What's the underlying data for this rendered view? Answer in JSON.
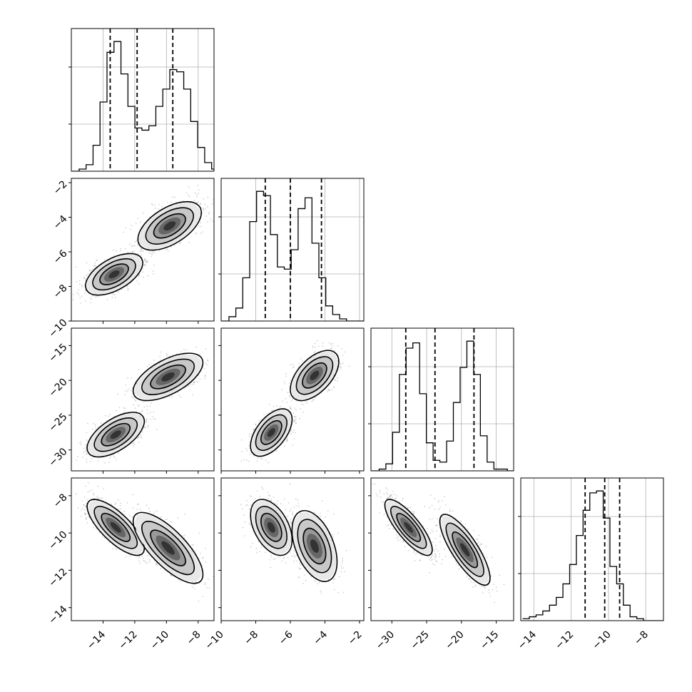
{
  "chart_data": {
    "type": "corner",
    "title": "",
    "grid": true,
    "params": [
      {
        "range": [
          -16,
          -7
        ],
        "ticks": [
          -14,
          -12,
          -10,
          -8
        ],
        "quantiles": [
          -13.55,
          -11.85,
          -9.6
        ]
      },
      {
        "range": [
          -10,
          -1.75
        ],
        "ticks": [
          -10,
          -8,
          -6,
          -4,
          -2
        ],
        "quantiles": [
          -7.45,
          -6.0,
          -4.2
        ]
      },
      {
        "range": [
          -33,
          -12.5
        ],
        "ticks": [
          -30,
          -25,
          -20,
          -15
        ],
        "quantiles": [
          -28.0,
          -23.8,
          -18.2
        ]
      },
      {
        "range": [
          -14.7,
          -7.05
        ],
        "ticks": [
          -14,
          -12,
          -10,
          -8
        ],
        "quantiles": [
          -11.25,
          -10.2,
          -9.4
        ]
      }
    ],
    "histograms": [
      {
        "edges_start": -15.95,
        "bin_width": 0.44,
        "counts": [
          0,
          1,
          3,
          12,
          32,
          55,
          60,
          45,
          30,
          20,
          19,
          21,
          30,
          38,
          47,
          46,
          38,
          23,
          11,
          4,
          1
        ]
      },
      {
        "edges_start": -9.95,
        "bin_width": 0.4,
        "counts": [
          0,
          2,
          6,
          20,
          46,
          60,
          58,
          40,
          25,
          24,
          33,
          52,
          57,
          36,
          20,
          7,
          3,
          1,
          0,
          0,
          0
        ]
      },
      {
        "edges_start": -32.8,
        "bin_width": 0.97,
        "counts": [
          0,
          1,
          4,
          22,
          55,
          70,
          73,
          44,
          16,
          6,
          5,
          17,
          39,
          59,
          74,
          55,
          20,
          5,
          1,
          1,
          0
        ]
      },
      {
        "edges_start": -14.6,
        "bin_width": 0.36,
        "counts": [
          1,
          2,
          3,
          5,
          8,
          12,
          19,
          29,
          44,
          57,
          66,
          67,
          53,
          28,
          19,
          8,
          2,
          1,
          0,
          0,
          0
        ]
      }
    ],
    "pairs": [
      {
        "x": 0,
        "y": 1,
        "rho": 0.55,
        "modes": [
          {
            "mx": -13.3,
            "my": -7.3,
            "sx": 0.9,
            "sy": 0.6,
            "w": 0.55
          },
          {
            "mx": -9.8,
            "my": -4.5,
            "sx": 1.0,
            "sy": 0.7,
            "w": 0.45
          }
        ]
      },
      {
        "x": 0,
        "y": 2,
        "rho": 0.6,
        "modes": [
          {
            "mx": -13.2,
            "my": -27.8,
            "sx": 0.9,
            "sy": 1.6,
            "w": 0.55
          },
          {
            "mx": -9.9,
            "my": -19.5,
            "sx": 1.1,
            "sy": 1.7,
            "w": 0.45
          }
        ]
      },
      {
        "x": 1,
        "y": 2,
        "rho": 0.55,
        "modes": [
          {
            "mx": -7.1,
            "my": -27.5,
            "sx": 0.6,
            "sy": 1.7,
            "w": 0.55
          },
          {
            "mx": -4.6,
            "my": -19.3,
            "sx": 0.7,
            "sy": 1.8,
            "w": 0.45
          }
        ]
      },
      {
        "x": 0,
        "y": 3,
        "rho": -0.75,
        "modes": [
          {
            "mx": -13.2,
            "my": -9.7,
            "sx": 0.9,
            "sy": 0.75,
            "w": 0.55
          },
          {
            "mx": -9.9,
            "my": -10.8,
            "sx": 1.1,
            "sy": 0.95,
            "w": 0.45
          }
        ]
      },
      {
        "x": 1,
        "y": 3,
        "rho": -0.45,
        "modes": [
          {
            "mx": -7.1,
            "my": -9.7,
            "sx": 0.6,
            "sy": 0.75,
            "w": 0.55
          },
          {
            "mx": -4.6,
            "my": -10.7,
            "sx": 0.65,
            "sy": 0.95,
            "w": 0.45
          }
        ]
      },
      {
        "x": 2,
        "y": 3,
        "rho": -0.8,
        "modes": [
          {
            "mx": -27.6,
            "my": -9.7,
            "sx": 1.7,
            "sy": 0.75,
            "w": 0.55
          },
          {
            "mx": -19.5,
            "my": -10.9,
            "sx": 1.8,
            "sy": 0.95,
            "w": 0.45
          }
        ]
      }
    ]
  }
}
